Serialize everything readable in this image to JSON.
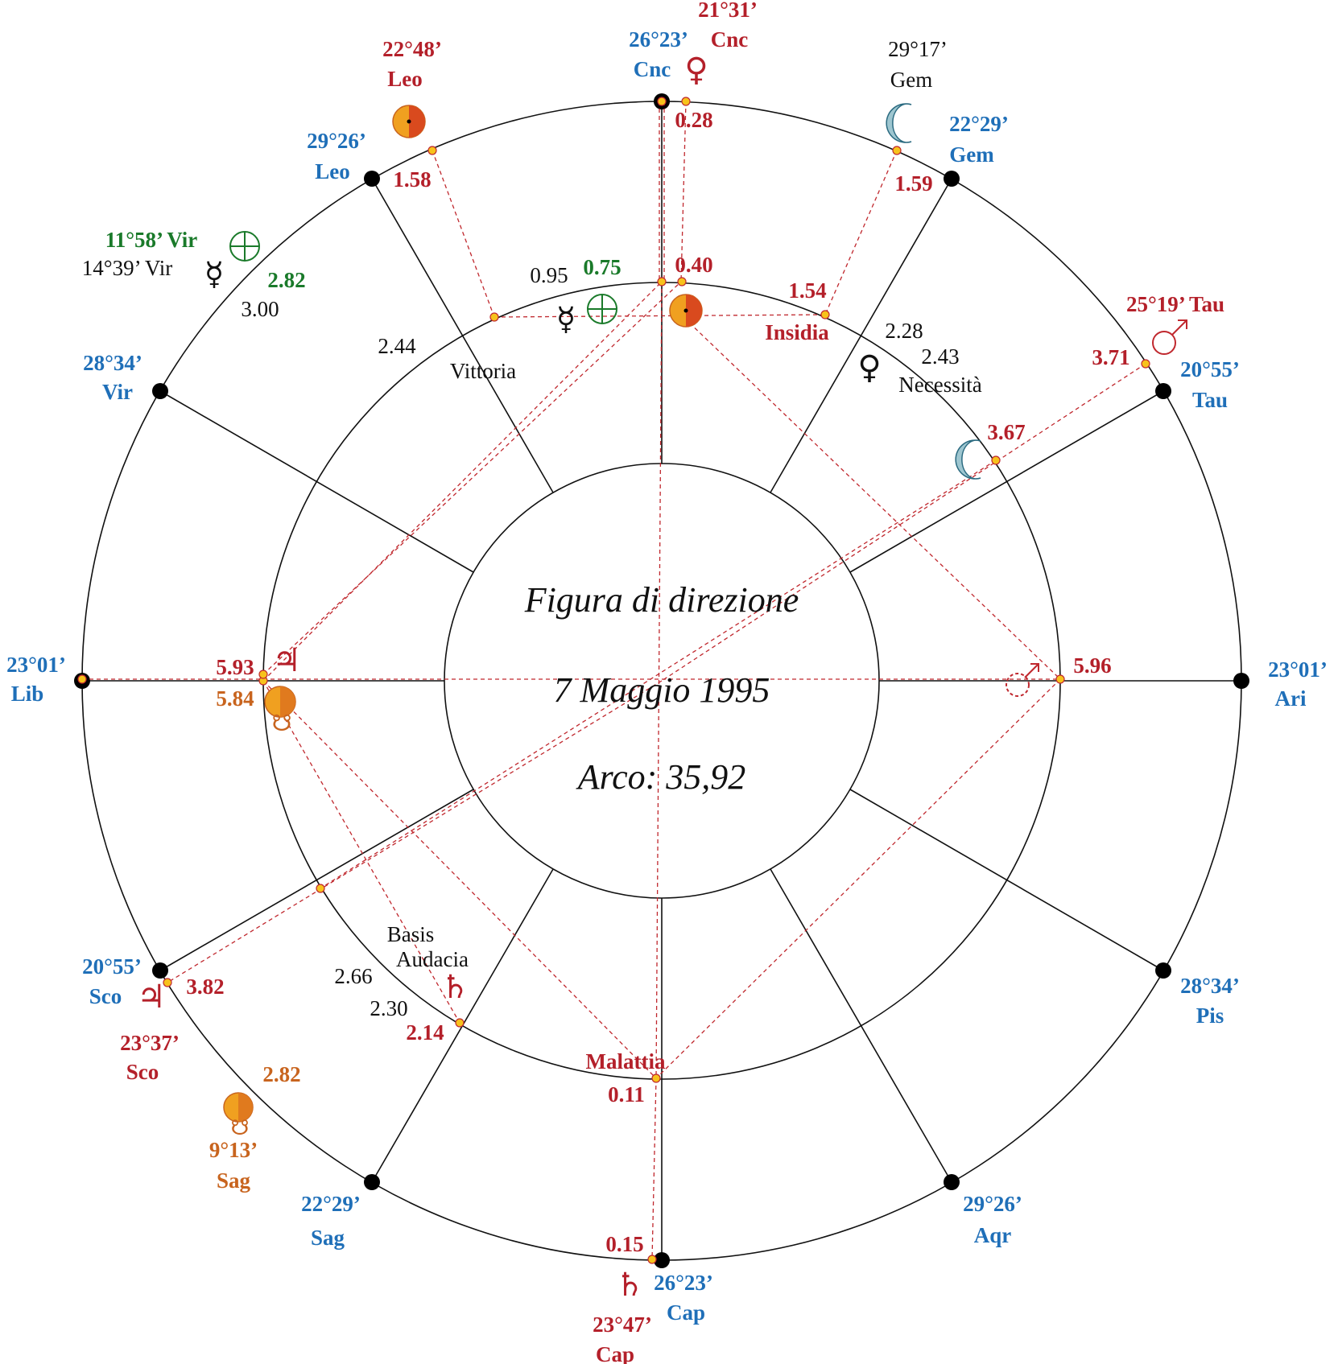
{
  "colors": {
    "blue": "#1f6fb8",
    "red": "#b4202a",
    "green": "#1a7a2a",
    "orange": "#c8641e",
    "black": "#111111",
    "dash": "#c0282e"
  },
  "center": {
    "title": "Figura di direzione",
    "date": "7 Maggio 1995",
    "arc": "Arco: 35,92"
  },
  "cusps": [
    {
      "deg": "26°23’",
      "sign": "Cnc"
    },
    {
      "deg": "22°29’",
      "sign": "Gem"
    },
    {
      "deg": "20°55’",
      "sign": "Tau"
    },
    {
      "deg": "23°01’",
      "sign": "Ari"
    },
    {
      "deg": "28°34’",
      "sign": "Pis"
    },
    {
      "deg": "29°26’",
      "sign": "Aqr"
    },
    {
      "deg": "26°23’",
      "sign": "Cap"
    },
    {
      "deg": "22°29’",
      "sign": "Sag"
    },
    {
      "deg": "20°55’",
      "sign": "Sco"
    },
    {
      "deg": "23°01’",
      "sign": "Lib"
    },
    {
      "deg": "28°34’",
      "sign": "Vir"
    },
    {
      "deg": "29°26’",
      "sign": "Leo"
    }
  ],
  "planets": {
    "venus": {
      "deg": "21°31’",
      "sign": "Cnc",
      "glyph": "♀"
    },
    "sun": {
      "deg": "22°48’",
      "sign": "Leo"
    },
    "moon": {
      "deg": "29°17’",
      "sign": "Gem",
      "glyph": "☾"
    },
    "fortuna": {
      "label": "11°58’ Vir",
      "glyph": "⊕"
    },
    "mercury": {
      "label": "14°39’ Vir",
      "glyph": "☿"
    },
    "mars": {
      "label": "25°19’ Tau",
      "glyph": "♂"
    },
    "jupiter": {
      "deg": "23°37’",
      "sign": "Sco",
      "glyph": "♃"
    },
    "node": {
      "deg": "9°13’",
      "sign": "Sag",
      "glyph": "☋"
    },
    "saturn": {
      "deg": "23°47’",
      "sign": "Cap",
      "glyph": "♄"
    }
  },
  "arcs": {
    "venus_outer": "0.28",
    "sun_outer": "1.58",
    "moon_outer": "1.59",
    "fortuna_outer": "2.82",
    "mercury_outer": "3.00",
    "mars_outer": "3.71",
    "jupiter_outer": "3.82",
    "node_outer": "2.82",
    "saturn_outer": "0.15",
    "mc_inner": "0.95",
    "fortuna_inner": "0.75",
    "venus_inner": "0.40",
    "insidia": "1.54",
    "vittoria": "2.44",
    "nec1": "2.28",
    "nec2": "2.43",
    "moon_inner": "3.67",
    "mars_inner": "5.96",
    "jup_inner": "5.93",
    "node_inner": "5.84",
    "basis": "2.66",
    "audacia": "2.30",
    "saturn_inner": "2.14",
    "malattia": "0.11"
  },
  "lots": {
    "vittoria": "Vittoria",
    "insidia": "Insidia",
    "necessita": "Necessità",
    "basis": "Basis",
    "audacia": "Audacia",
    "malattia": "Malattia"
  }
}
